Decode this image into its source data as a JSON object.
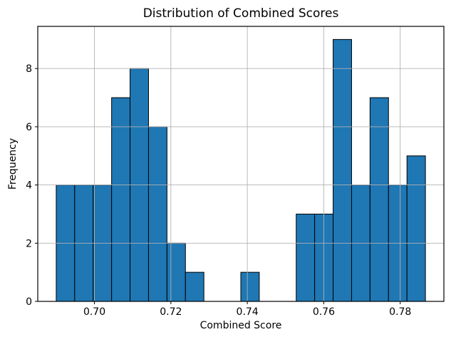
{
  "chart_data": {
    "type": "bar",
    "subtype": "histogram",
    "title": "Distribution of Combined Scores",
    "xlabel": "Combined Score",
    "ylabel": "Frequency",
    "bin_start": 0.69,
    "bin_width": 0.00483,
    "counts": [
      4,
      4,
      4,
      7,
      8,
      6,
      2,
      1,
      0,
      0,
      1,
      0,
      0,
      3,
      3,
      9,
      4,
      7,
      4,
      5
    ],
    "xlim": [
      0.68517,
      0.79143
    ],
    "ylim": [
      0,
      9.45
    ],
    "xticks": {
      "values": [
        0.7,
        0.72,
        0.74,
        0.76,
        0.78
      ],
      "labels": [
        "0.70",
        "0.72",
        "0.74",
        "0.76",
        "0.78"
      ]
    },
    "yticks": {
      "values": [
        0,
        2,
        4,
        6,
        8
      ],
      "labels": [
        "0",
        "2",
        "4",
        "6",
        "8"
      ]
    },
    "grid": true,
    "legend": null,
    "colors": {
      "bar_fill": "#1f77b4",
      "bar_edge": "#000000",
      "grid": "#b2b2b2",
      "spine": "#000000",
      "text": "#000000",
      "background": "#ffffff"
    }
  }
}
